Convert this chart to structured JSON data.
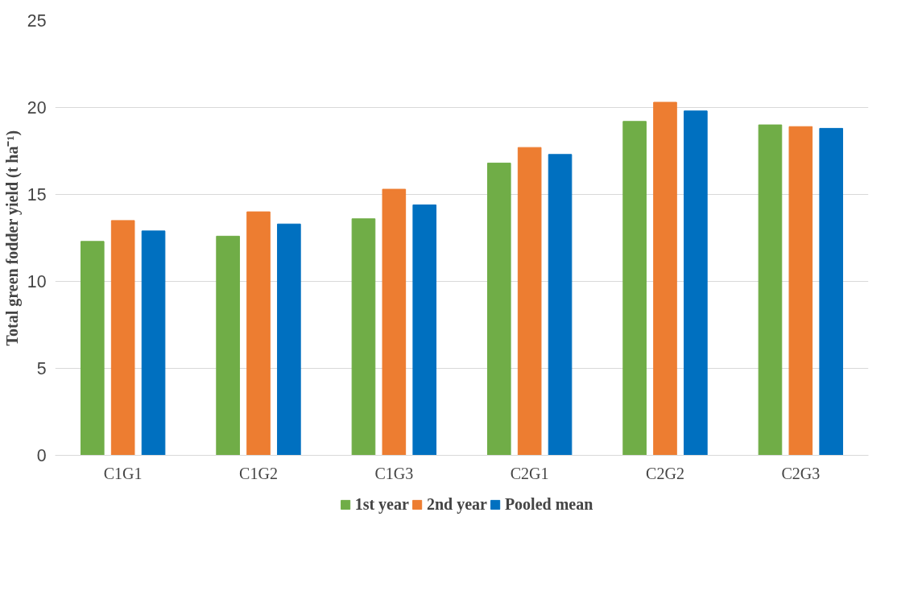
{
  "chart_data": {
    "type": "bar",
    "ylabel": "Total green fodder yield (t ha⁻¹)",
    "categories": [
      "C1G1",
      "C1G2",
      "C1G3",
      "C2G1",
      "C2G2",
      "C2G3"
    ],
    "series": [
      {
        "name": "1st year",
        "color": "#70ad47",
        "values": [
          12.3,
          12.6,
          13.6,
          16.8,
          19.2,
          19.0
        ]
      },
      {
        "name": "2nd year",
        "color": "#ed7d31",
        "values": [
          13.5,
          14.0,
          15.3,
          17.7,
          20.3,
          18.9
        ]
      },
      {
        "name": "Pooled mean",
        "color": "#0070c0",
        "values": [
          12.9,
          13.3,
          14.4,
          17.3,
          19.8,
          18.8
        ]
      }
    ],
    "ylim": [
      0,
      25
    ],
    "yticks": [
      0,
      5,
      10,
      15,
      20,
      25
    ],
    "grid": "y",
    "legend": "bottom"
  }
}
